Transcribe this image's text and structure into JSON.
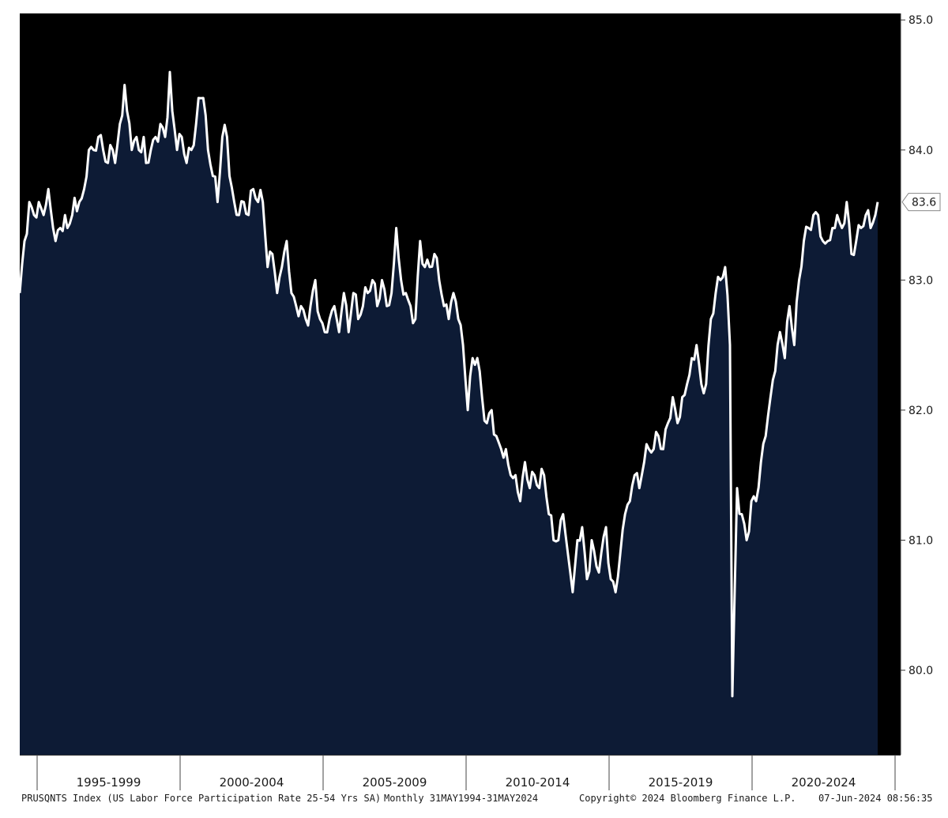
{
  "chart_data": {
    "type": "area",
    "title": "",
    "xlabel": "",
    "ylabel": "",
    "frequency": "Monthly",
    "x_start": "1994-05",
    "x_end": "2024-05",
    "ylim": [
      79.35,
      85.05
    ],
    "y_ticks": [
      85.0,
      84.0,
      83.0,
      82.0,
      81.0,
      80.0
    ],
    "y_tick_labels": [
      "85.0",
      "84.0",
      "83.0",
      "82.0",
      "81.0",
      "80.0"
    ],
    "x_tick_labels": [
      "1995-1999",
      "2000-2004",
      "2005-2009",
      "2010-2014",
      "2015-2019",
      "2020-2024"
    ],
    "last_value_label": "83.6",
    "grid": false,
    "plot_background": "#000000",
    "area_color": "#0d1b35",
    "line_color": "#ffffff",
    "anchors": [
      [
        "1994-05",
        82.9
      ],
      [
        "1994-07",
        83.3
      ],
      [
        "1994-09",
        83.6
      ],
      [
        "1994-11",
        83.5
      ],
      [
        "1995-01",
        83.6
      ],
      [
        "1995-03",
        83.5
      ],
      [
        "1995-05",
        83.7
      ],
      [
        "1995-07",
        83.4
      ],
      [
        "1995-08",
        83.3
      ],
      [
        "1995-10",
        83.4
      ],
      [
        "1995-12",
        83.5
      ],
      [
        "1996-01",
        83.4
      ],
      [
        "1996-03",
        83.5
      ],
      [
        "1996-06",
        83.6
      ],
      [
        "1996-08",
        83.7
      ],
      [
        "1996-10",
        84.0
      ],
      [
        "1996-12",
        84.0
      ],
      [
        "1997-02",
        84.1
      ],
      [
        "1997-04",
        84.0
      ],
      [
        "1997-06",
        83.9
      ],
      [
        "1997-08",
        84.0
      ],
      [
        "1997-09",
        83.9
      ],
      [
        "1997-11",
        84.2
      ],
      [
        "1998-01",
        84.5
      ],
      [
        "1998-02",
        84.3
      ],
      [
        "1998-04",
        84.0
      ],
      [
        "1998-06",
        84.1
      ],
      [
        "1998-07",
        84.0
      ],
      [
        "1998-09",
        84.1
      ],
      [
        "1998-10",
        83.9
      ],
      [
        "1998-12",
        84.0
      ],
      [
        "1999-02",
        84.1
      ],
      [
        "1999-04",
        84.2
      ],
      [
        "1999-06",
        84.1
      ],
      [
        "1999-08",
        84.6
      ],
      [
        "1999-09",
        84.3
      ],
      [
        "1999-11",
        84.0
      ],
      [
        "2000-01",
        84.1
      ],
      [
        "2000-03",
        83.9
      ],
      [
        "2000-05",
        84.0
      ],
      [
        "2000-07",
        84.2
      ],
      [
        "2000-08",
        84.4
      ],
      [
        "2000-10",
        84.4
      ],
      [
        "2000-12",
        84.0
      ],
      [
        "2001-02",
        83.8
      ],
      [
        "2001-04",
        83.6
      ],
      [
        "2001-06",
        84.1
      ],
      [
        "2001-08",
        84.1
      ],
      [
        "2001-09",
        83.8
      ],
      [
        "2001-11",
        83.6
      ],
      [
        "2002-01",
        83.5
      ],
      [
        "2002-03",
        83.6
      ],
      [
        "2002-05",
        83.5
      ],
      [
        "2002-07",
        83.7
      ],
      [
        "2002-09",
        83.6
      ],
      [
        "2002-11",
        83.6
      ],
      [
        "2003-01",
        83.1
      ],
      [
        "2003-03",
        83.2
      ],
      [
        "2003-05",
        82.9
      ],
      [
        "2003-07",
        83.1
      ],
      [
        "2003-09",
        83.3
      ],
      [
        "2003-11",
        82.9
      ],
      [
        "2004-01",
        82.8
      ],
      [
        "2004-03",
        82.8
      ],
      [
        "2004-05",
        82.7
      ],
      [
        "2004-07",
        82.8
      ],
      [
        "2004-09",
        83.0
      ],
      [
        "2004-11",
        82.7
      ],
      [
        "2005-01",
        82.6
      ],
      [
        "2005-03",
        82.7
      ],
      [
        "2005-05",
        82.8
      ],
      [
        "2005-07",
        82.6
      ],
      [
        "2005-09",
        82.9
      ],
      [
        "2005-11",
        82.6
      ],
      [
        "2006-01",
        82.9
      ],
      [
        "2006-03",
        82.7
      ],
      [
        "2006-05",
        82.8
      ],
      [
        "2006-07",
        82.9
      ],
      [
        "2006-09",
        83.0
      ],
      [
        "2006-11",
        82.8
      ],
      [
        "2007-01",
        83.0
      ],
      [
        "2007-03",
        82.8
      ],
      [
        "2007-05",
        82.9
      ],
      [
        "2007-07",
        83.4
      ],
      [
        "2007-09",
        83.0
      ],
      [
        "2007-11",
        82.9
      ],
      [
        "2008-01",
        82.8
      ],
      [
        "2008-03",
        82.7
      ],
      [
        "2008-05",
        83.3
      ],
      [
        "2008-07",
        83.1
      ],
      [
        "2008-09",
        83.1
      ],
      [
        "2008-11",
        83.2
      ],
      [
        "2009-01",
        83.0
      ],
      [
        "2009-03",
        82.8
      ],
      [
        "2009-05",
        82.7
      ],
      [
        "2009-07",
        82.9
      ],
      [
        "2009-09",
        82.7
      ],
      [
        "2009-11",
        82.5
      ],
      [
        "2010-01",
        82.0
      ],
      [
        "2010-03",
        82.4
      ],
      [
        "2010-05",
        82.4
      ],
      [
        "2010-07",
        82.1
      ],
      [
        "2010-09",
        81.9
      ],
      [
        "2010-11",
        82.0
      ],
      [
        "2011-01",
        81.8
      ],
      [
        "2011-03",
        81.7
      ],
      [
        "2011-05",
        81.7
      ],
      [
        "2011-07",
        81.5
      ],
      [
        "2011-09",
        81.5
      ],
      [
        "2011-11",
        81.3
      ],
      [
        "2012-01",
        81.6
      ],
      [
        "2012-03",
        81.4
      ],
      [
        "2012-05",
        81.5
      ],
      [
        "2012-07",
        81.4
      ],
      [
        "2012-09",
        81.5
      ],
      [
        "2012-11",
        81.2
      ],
      [
        "2013-01",
        81.0
      ],
      [
        "2013-03",
        81.0
      ],
      [
        "2013-05",
        81.2
      ],
      [
        "2013-07",
        80.9
      ],
      [
        "2013-09",
        80.6
      ],
      [
        "2013-11",
        81.0
      ],
      [
        "2014-01",
        81.1
      ],
      [
        "2014-03",
        80.7
      ],
      [
        "2014-05",
        81.0
      ],
      [
        "2014-07",
        80.8
      ],
      [
        "2014-09",
        80.9
      ],
      [
        "2014-11",
        81.1
      ],
      [
        "2015-01",
        80.7
      ],
      [
        "2015-03",
        80.6
      ],
      [
        "2015-05",
        80.9
      ],
      [
        "2015-07",
        81.2
      ],
      [
        "2015-09",
        81.3
      ],
      [
        "2015-11",
        81.5
      ],
      [
        "2016-01",
        81.4
      ],
      [
        "2016-03",
        81.6
      ],
      [
        "2016-05",
        81.7
      ],
      [
        "2016-07",
        81.7
      ],
      [
        "2016-09",
        81.8
      ],
      [
        "2016-11",
        81.7
      ],
      [
        "2017-01",
        81.9
      ],
      [
        "2017-03",
        82.1
      ],
      [
        "2017-05",
        81.9
      ],
      [
        "2017-07",
        82.1
      ],
      [
        "2017-09",
        82.2
      ],
      [
        "2017-11",
        82.4
      ],
      [
        "2018-01",
        82.5
      ],
      [
        "2018-03",
        82.2
      ],
      [
        "2018-05",
        82.2
      ],
      [
        "2018-07",
        82.7
      ],
      [
        "2018-09",
        82.9
      ],
      [
        "2018-11",
        83.0
      ],
      [
        "2019-01",
        83.1
      ],
      [
        "2019-03",
        82.5
      ],
      [
        "2019-04",
        79.8
      ],
      [
        "2019-06",
        81.4
      ],
      [
        "2019-08",
        81.2
      ],
      [
        "2019-10",
        81.0
      ],
      [
        "2019-12",
        81.3
      ],
      [
        "2020-02",
        81.3
      ],
      [
        "2020-04",
        81.6
      ],
      [
        "2020-06",
        81.8
      ],
      [
        "2020-08",
        82.1
      ],
      [
        "2020-10",
        82.3
      ],
      [
        "2020-12",
        82.6
      ],
      [
        "2021-02",
        82.4
      ],
      [
        "2021-04",
        82.8
      ],
      [
        "2021-06",
        82.5
      ],
      [
        "2021-08",
        83.0
      ],
      [
        "2021-10",
        83.3
      ],
      [
        "2021-12",
        83.4
      ],
      [
        "2022-02",
        83.5
      ],
      [
        "2022-04",
        83.5
      ],
      [
        "2022-06",
        83.3
      ],
      [
        "2022-08",
        83.3
      ],
      [
        "2022-10",
        83.4
      ],
      [
        "2022-12",
        83.5
      ],
      [
        "2023-02",
        83.4
      ],
      [
        "2023-04",
        83.6
      ],
      [
        "2023-06",
        83.2
      ],
      [
        "2023-08",
        83.3
      ],
      [
        "2023-10",
        83.4
      ],
      [
        "2023-12",
        83.5
      ],
      [
        "2024-02",
        83.4
      ],
      [
        "2024-04",
        83.5
      ],
      [
        "2024-05",
        83.6
      ]
    ]
  },
  "footer": {
    "ticker_desc": "PRUSQNTS Index (US Labor Force Participation Rate 25-54 Yrs SA)",
    "range": "Monthly 31MAY1994-31MAY2024",
    "copyright": "Copyright© 2024 Bloomberg Finance L.P.",
    "timestamp": "07-Jun-2024 08:56:35"
  }
}
